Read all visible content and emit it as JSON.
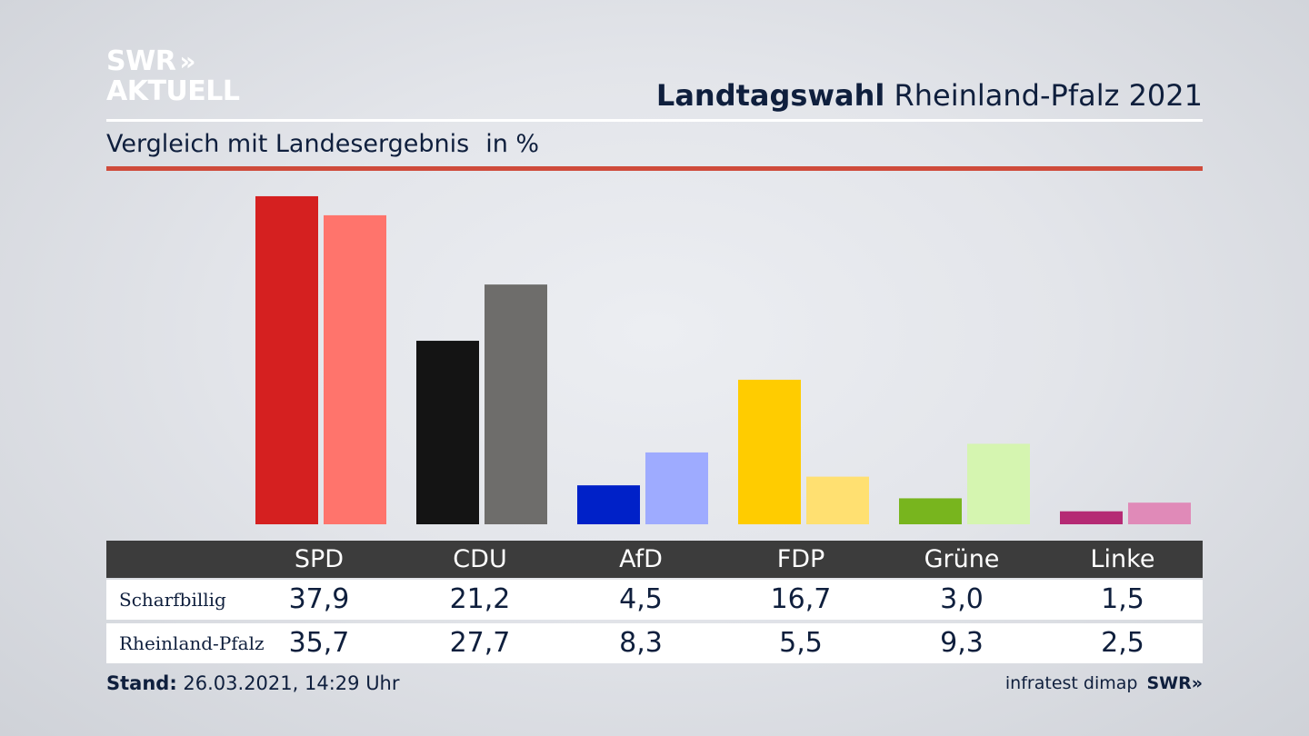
{
  "logo": {
    "line1": "SWR",
    "chevrons": "»",
    "line2": "AKTUELL"
  },
  "title": {
    "bold": "Landtagswahl",
    "rest": "Rheinland-Pfalz 2021"
  },
  "subtitle": {
    "text": "Vergleich mit Landesergebnis",
    "unit": "in %"
  },
  "chart_data": {
    "type": "bar",
    "categories": [
      "SPD",
      "CDU",
      "AfD",
      "FDP",
      "Grüne",
      "Linke"
    ],
    "series": [
      {
        "name": "Scharfbillig",
        "values": [
          37.9,
          21.2,
          4.5,
          16.7,
          3.0,
          1.5
        ],
        "colors": [
          "#d52020",
          "#141414",
          "#0021c8",
          "#ffcc00",
          "#78b51e",
          "#b52a74"
        ]
      },
      {
        "name": "Rheinland-Pfalz",
        "values": [
          35.7,
          27.7,
          8.3,
          5.5,
          9.3,
          2.5
        ],
        "colors": [
          "#ff746c",
          "#6e6d6b",
          "#9eabff",
          "#ffe071",
          "#d5f5b0",
          "#e08ab8"
        ]
      }
    ],
    "ylim": [
      0,
      38
    ]
  },
  "table": {
    "headers": [
      "SPD",
      "CDU",
      "AfD",
      "FDP",
      "Grüne",
      "Linke"
    ],
    "rows": [
      {
        "label": "Scharfbillig",
        "values": [
          "37,9",
          "21,2",
          "4,5",
          "16,7",
          "3,0",
          "1,5"
        ]
      },
      {
        "label": "Rheinland-Pfalz",
        "values": [
          "35,7",
          "27,7",
          "8,3",
          "5,5",
          "9,3",
          "2,5"
        ]
      }
    ]
  },
  "footer": {
    "stand_label": "Stand:",
    "stand_value": "26.03.2021, 14:29 Uhr",
    "source": "infratest dimap",
    "brand": "SWR»"
  }
}
